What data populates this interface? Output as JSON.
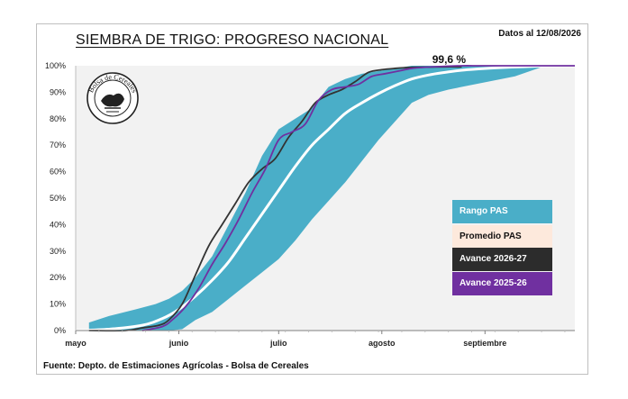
{
  "header": {
    "title": "SIEMBRA DE TRIGO: PROGRESO NACIONAL",
    "date_note": "Datos al 12/08/2026"
  },
  "footer": {
    "source": "Fuente: Depto. de Estimaciones Agrícolas - Bolsa de Cereales"
  },
  "logo": {
    "text": "Bolsa de Cereales"
  },
  "chart_data": {
    "type": "area",
    "title": "SIEMBRA DE TRIGO: PROGRESO NACIONAL",
    "xlabel": "",
    "ylabel": "",
    "x_unit": "days from May 1",
    "xlim": [
      0,
      150
    ],
    "ylim": [
      0,
      100
    ],
    "grid": false,
    "legend_position": "right",
    "y_ticks": [
      "0%",
      "10%",
      "20%",
      "30%",
      "40%",
      "50%",
      "60%",
      "70%",
      "80%",
      "90%",
      "100%"
    ],
    "x_ticks": [
      {
        "label": "mayo",
        "x": 0
      },
      {
        "label": "junio",
        "x": 31
      },
      {
        "label": "julio",
        "x": 61
      },
      {
        "label": "agosto",
        "x": 92
      },
      {
        "label": "septiembre",
        "x": 123
      }
    ],
    "annotation": {
      "text": "99,6 %",
      "x": 116,
      "y": 99.6
    },
    "colors": {
      "band": "#4aaec8",
      "average": "#ffffff",
      "avance_2026_27": "#333333",
      "avance_2025_26": "#7030a0",
      "plot_bg": "#f2f2f2"
    },
    "legend": [
      {
        "label": "Rango PAS",
        "key": "band"
      },
      {
        "label": "Promedio PAS",
        "key": "average"
      },
      {
        "label": "Avance 2026-27",
        "key": "avance_2026_27"
      },
      {
        "label": "Avance 2025-26",
        "key": "avance_2025_26"
      }
    ],
    "series": [
      {
        "name": "Rango PAS",
        "kind": "band",
        "x": [
          4,
          10,
          18,
          24,
          28,
          32,
          36,
          41,
          46,
          51,
          56,
          61,
          66,
          71,
          76,
          81,
          86,
          91,
          96,
          101,
          106,
          112,
          118,
          124,
          132,
          140,
          150
        ],
        "upper": [
          3,
          5.5,
          8,
          10,
          12,
          15,
          20,
          28,
          40,
          52,
          66,
          76,
          80,
          84,
          92,
          95,
          97,
          98,
          99,
          100,
          100,
          100,
          100,
          100,
          100,
          100,
          100
        ],
        "lower": [
          0,
          0,
          0,
          0,
          0,
          0.5,
          4,
          7,
          12,
          17,
          22,
          27,
          34,
          42,
          49,
          56,
          64,
          72,
          79,
          86,
          89,
          91,
          92.5,
          94,
          96,
          99.5,
          100
        ]
      },
      {
        "name": "Promedio PAS",
        "kind": "line",
        "x": [
          0,
          10,
          20,
          26,
          31,
          36,
          41,
          46,
          51,
          56,
          61,
          66,
          71,
          76,
          81,
          86,
          91,
          96,
          101,
          106,
          111,
          116,
          121,
          126,
          131,
          136,
          141,
          146,
          150
        ],
        "y": [
          0,
          0.5,
          2,
          4.5,
          8,
          13,
          19,
          26,
          35,
          44,
          53,
          62,
          70,
          76,
          82,
          86,
          89.5,
          92.5,
          95,
          96.5,
          97.5,
          98.3,
          98.8,
          99.2,
          99.5,
          99.7,
          99.9,
          100,
          100
        ]
      },
      {
        "name": "Avance 2026-27",
        "kind": "line",
        "x": [
          4,
          15,
          20,
          25,
          28,
          32,
          36,
          40,
          44,
          48,
          52,
          56,
          60,
          64,
          68,
          72,
          76,
          80,
          84,
          88,
          92,
          96,
          101,
          106,
          111,
          116
        ],
        "y": [
          0,
          0,
          1,
          2,
          4,
          10,
          21,
          32,
          40,
          48,
          56,
          61,
          65,
          73,
          79,
          86,
          89,
          91,
          94,
          97.5,
          98.5,
          99,
          99.4,
          99.5,
          99.6,
          99.6
        ]
      },
      {
        "name": "Avance 2025-26",
        "kind": "line",
        "x": [
          20,
          26,
          29,
          33,
          37,
          41,
          45,
          49,
          53,
          57,
          61,
          65,
          69,
          73,
          77,
          81,
          85,
          89,
          93,
          97,
          101,
          106,
          111,
          116,
          121,
          126,
          131,
          136,
          141,
          146,
          150
        ],
        "y": [
          0,
          1.5,
          4,
          9,
          16,
          25,
          33,
          42,
          52,
          61,
          72,
          75,
          78,
          87,
          91,
          92,
          93,
          96,
          97,
          98,
          99,
          99.5,
          99.8,
          100,
          100,
          100,
          100,
          100,
          100,
          100,
          100
        ]
      }
    ]
  }
}
